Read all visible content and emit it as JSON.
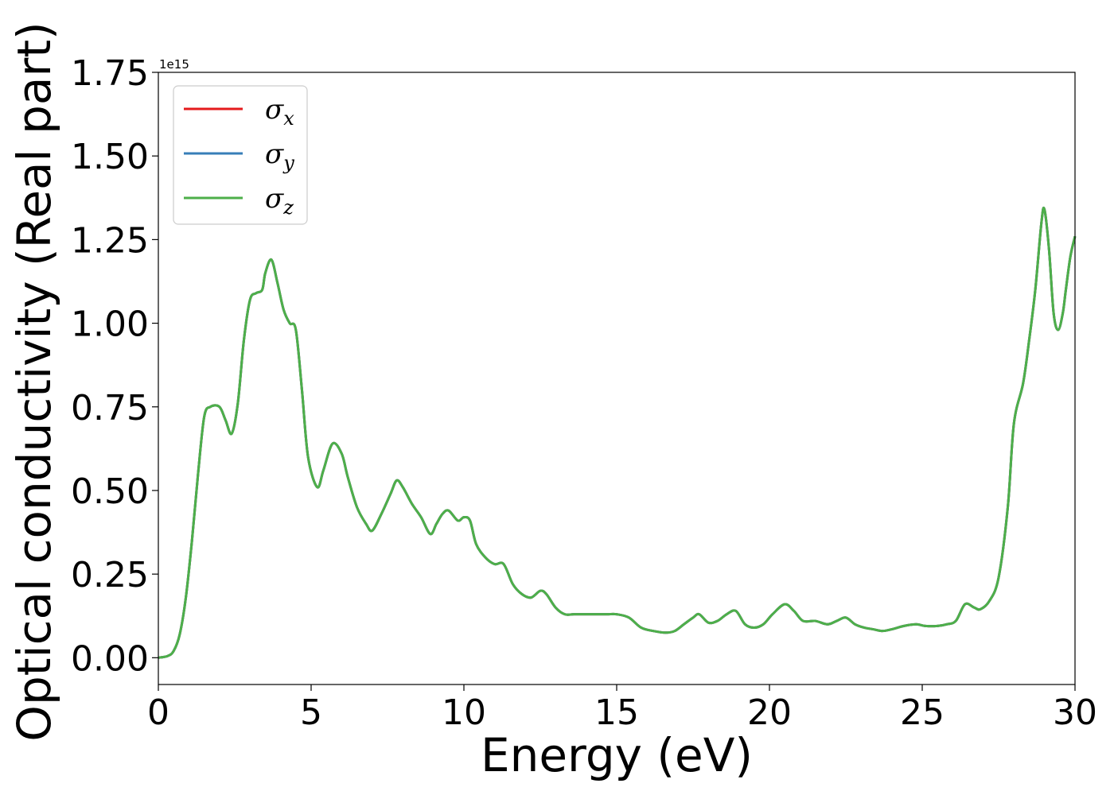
{
  "chart_data": {
    "type": "line",
    "xlabel": "Energy (eV)",
    "ylabel": "Optical conductivity (Real part)",
    "offset_text": "1e15",
    "xlim": [
      0,
      30
    ],
    "ylim": [
      -0.08,
      1.75
    ],
    "y_scale_exponent": 15,
    "x_ticks": [
      0,
      5,
      10,
      15,
      20,
      25,
      30
    ],
    "x_tick_labels": [
      "0",
      "5",
      "10",
      "15",
      "20",
      "25",
      "30"
    ],
    "y_ticks": [
      0.0,
      0.25,
      0.5,
      0.75,
      1.0,
      1.25,
      1.5,
      1.75
    ],
    "y_tick_labels": [
      "0.00",
      "0.25",
      "0.50",
      "0.75",
      "1.00",
      "1.25",
      "1.50",
      "1.75"
    ],
    "grid": false,
    "legend_position": "upper-left",
    "series": [
      {
        "legend_symbol": "σ",
        "legend_subscript": "x",
        "color": "#e41a1c"
      },
      {
        "legend_symbol": "σ",
        "legend_subscript": "y",
        "color": "#377eb8"
      },
      {
        "legend_symbol": "σ",
        "legend_subscript": "z",
        "color": "#4daf4a"
      }
    ],
    "x": [
      0.0,
      0.3,
      0.5,
      0.7,
      0.9,
      1.1,
      1.3,
      1.5,
      1.7,
      2.0,
      2.2,
      2.4,
      2.6,
      2.8,
      3.0,
      3.2,
      3.4,
      3.5,
      3.7,
      3.9,
      4.1,
      4.3,
      4.5,
      4.7,
      4.9,
      5.2,
      5.4,
      5.7,
      6.0,
      6.2,
      6.5,
      6.8,
      7.0,
      7.3,
      7.6,
      7.8,
      8.0,
      8.3,
      8.6,
      8.9,
      9.1,
      9.3,
      9.5,
      9.8,
      10.0,
      10.2,
      10.4,
      10.7,
      11.0,
      11.3,
      11.6,
      11.9,
      12.2,
      12.5,
      12.7,
      13.0,
      13.3,
      13.6,
      14.0,
      14.4,
      14.7,
      15.0,
      15.4,
      15.8,
      16.2,
      16.6,
      16.9,
      17.2,
      17.5,
      17.7,
      18.0,
      18.3,
      18.6,
      18.9,
      19.2,
      19.5,
      19.8,
      20.1,
      20.5,
      20.8,
      21.1,
      21.5,
      21.9,
      22.2,
      22.5,
      22.8,
      23.1,
      23.4,
      23.7,
      24.0,
      24.4,
      24.8,
      25.1,
      25.5,
      25.8,
      26.1,
      26.4,
      26.7,
      26.9,
      27.2,
      27.5,
      27.8,
      28.0,
      28.3,
      28.5,
      28.7,
      28.9,
      29.0,
      29.15,
      29.3,
      29.45,
      29.6,
      29.7,
      29.85,
      30.0
    ],
    "values": [
      0.0,
      0.005,
      0.02,
      0.07,
      0.18,
      0.35,
      0.55,
      0.72,
      0.75,
      0.75,
      0.71,
      0.67,
      0.76,
      0.95,
      1.07,
      1.09,
      1.1,
      1.15,
      1.19,
      1.12,
      1.04,
      1.0,
      0.98,
      0.8,
      0.6,
      0.51,
      0.56,
      0.64,
      0.61,
      0.54,
      0.45,
      0.4,
      0.38,
      0.43,
      0.49,
      0.53,
      0.51,
      0.46,
      0.42,
      0.37,
      0.4,
      0.43,
      0.44,
      0.41,
      0.42,
      0.41,
      0.34,
      0.3,
      0.28,
      0.28,
      0.22,
      0.19,
      0.18,
      0.2,
      0.19,
      0.15,
      0.13,
      0.13,
      0.13,
      0.13,
      0.13,
      0.13,
      0.12,
      0.09,
      0.08,
      0.075,
      0.08,
      0.1,
      0.12,
      0.13,
      0.105,
      0.11,
      0.13,
      0.14,
      0.1,
      0.09,
      0.1,
      0.13,
      0.16,
      0.14,
      0.11,
      0.11,
      0.1,
      0.11,
      0.12,
      0.1,
      0.09,
      0.085,
      0.08,
      0.085,
      0.095,
      0.1,
      0.095,
      0.095,
      0.1,
      0.11,
      0.16,
      0.15,
      0.145,
      0.17,
      0.24,
      0.45,
      0.7,
      0.82,
      0.95,
      1.1,
      1.3,
      1.34,
      1.22,
      1.03,
      0.98,
      1.03,
      1.1,
      1.2,
      1.26
    ]
  }
}
